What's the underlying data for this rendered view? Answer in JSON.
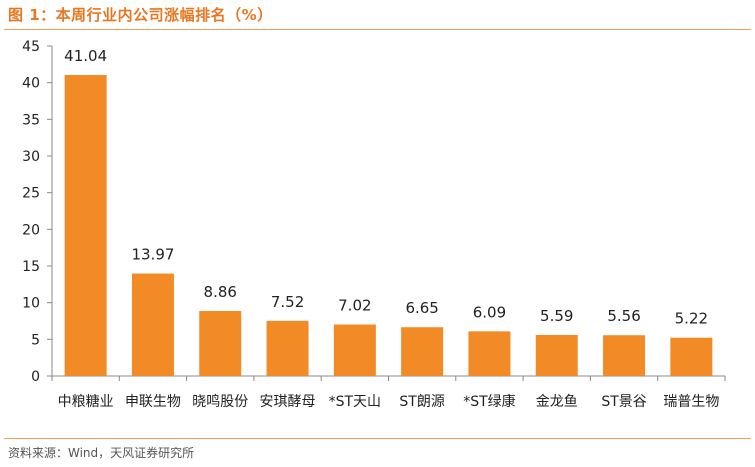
{
  "header": {
    "title": "图 1：本周行业内公司涨幅排名（%）"
  },
  "footer": {
    "source": "资料来源：Wind，天风证券研究所"
  },
  "colors": {
    "bar": "#f28a26",
    "accent": "#e87722"
  },
  "chart_data": {
    "type": "bar",
    "title": "本周行业内公司涨幅排名（%）",
    "xlabel": "",
    "ylabel": "",
    "ylim": [
      0,
      45
    ],
    "yticks": [
      0,
      5,
      10,
      15,
      20,
      25,
      30,
      35,
      40,
      45
    ],
    "grid": false,
    "categories": [
      "中粮糖业",
      "申联生物",
      "晓鸣股份",
      "安琪酵母",
      "*ST天山",
      "ST朗源",
      "*ST绿康",
      "金龙鱼",
      "ST景谷",
      "瑞普生物"
    ],
    "values": [
      41.04,
      13.97,
      8.86,
      7.52,
      7.02,
      6.65,
      6.09,
      5.59,
      5.56,
      5.22
    ],
    "value_labels": [
      "41.04",
      "13.97",
      "8.86",
      "7.52",
      "7.02",
      "6.65",
      "6.09",
      "5.59",
      "5.56",
      "5.22"
    ]
  }
}
